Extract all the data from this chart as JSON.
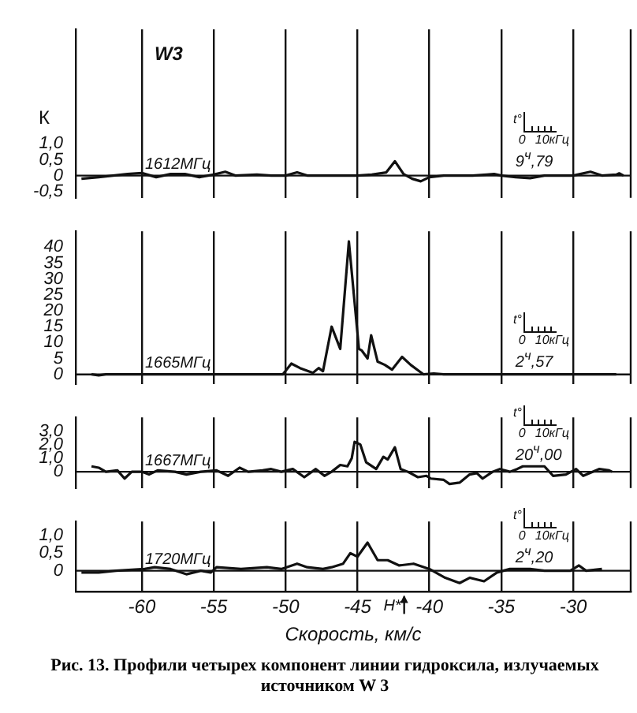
{
  "chart_data": [
    {
      "type": "line",
      "title": "W3",
      "ylabel": "К",
      "xlim": [
        -64.6,
        -26
      ],
      "xticks": [
        -60,
        -55,
        -50,
        -45,
        -40,
        -35,
        -30
      ],
      "ylim": [
        -0.7,
        4.6
      ],
      "yticks": [
        {
          "value": -0.5,
          "label": "-0,5"
        },
        0,
        {
          "value": 0.5,
          "label": "0,5"
        },
        {
          "value": 1,
          "label": "1,0"
        }
      ],
      "grid": "x",
      "tick_labels": "y",
      "marker": "none",
      "ref_lines": [
        {
          "axis": "y",
          "value": 0
        }
      ],
      "annotations": [
        "1612МГц",
        "t°",
        "0",
        "10кГц",
        "9$^{ч}$,79"
      ],
      "series": [
        {
          "color": "#111111",
          "x": [
            -64.2,
            -63,
            -62,
            -61,
            -60,
            -59,
            -58,
            -57,
            -56,
            -55,
            -54.2,
            -53.5,
            -52,
            -51,
            -50,
            -49.2,
            -48.5,
            -47,
            -46,
            -45,
            -44,
            -43,
            -42.4,
            -41.8,
            -41.2,
            -40.6,
            -40,
            -39,
            -37,
            -36,
            -35.5,
            -35,
            -34,
            -33,
            -32,
            -31,
            -30,
            -29.5,
            -28.8,
            -28,
            -27,
            -26.8,
            -26.5
          ],
          "values": [
            -0.1,
            -0.05,
            0,
            0.05,
            0.08,
            -0.05,
            0.05,
            0.05,
            -0.05,
            0.03,
            0.12,
            0,
            0.03,
            0,
            0,
            0.1,
            0,
            0,
            0,
            0,
            0.03,
            0.1,
            0.45,
            0.05,
            -0.1,
            -0.18,
            -0.05,
            0,
            0,
            0.03,
            0.05,
            0,
            -0.05,
            -0.08,
            0,
            0,
            0,
            0.05,
            0.12,
            0,
            0.03,
            0.07,
            0
          ]
        }
      ]
    },
    {
      "type": "line",
      "xlim": [
        -64.6,
        -26
      ],
      "xticks": [
        -60,
        -55,
        -50,
        -45,
        -40,
        -35,
        -30
      ],
      "ylim": [
        -3,
        45
      ],
      "yticks": [
        0,
        5,
        10,
        15,
        20,
        25,
        30,
        35,
        40
      ],
      "grid": "x",
      "tick_labels": "y",
      "marker": "none",
      "ref_lines": [
        {
          "axis": "y",
          "value": 0
        }
      ],
      "annotations": [
        "1665МГц",
        "t°",
        "0",
        "10кГц",
        "2$^{ч}$,57"
      ],
      "series": [
        {
          "color": "#111111",
          "x": [
            -63.5,
            -63,
            -62.5,
            -60,
            -55,
            -50.2,
            -49.6,
            -49,
            -48.1,
            -47.7,
            -47.4,
            -46.8,
            -46.2,
            -45.6,
            -44.9,
            -44.7,
            -44.3,
            -44.05,
            -43.6,
            -43.1,
            -42.6,
            -41.9,
            -41.3,
            -40.7,
            -40.4,
            -39.7,
            -39,
            -35,
            -30,
            -27
          ],
          "values": [
            0,
            -0.3,
            0,
            0,
            0,
            0,
            3.4,
            2,
            0.5,
            2,
            1,
            15,
            8,
            41.8,
            8,
            7.5,
            5,
            12.3,
            4,
            3,
            1.5,
            5.5,
            3,
            1,
            0,
            0.3,
            0,
            0,
            0,
            0
          ]
        }
      ]
    },
    {
      "type": "line",
      "xlim": [
        -64.6,
        -26
      ],
      "xticks": [
        -60,
        -55,
        -50,
        -45,
        -40,
        -35,
        -30
      ],
      "ylim": [
        -1.2,
        4
      ],
      "yticks": [
        0,
        {
          "value": 1,
          "label": "1,0"
        },
        {
          "value": 2,
          "label": "2,0"
        },
        {
          "value": 3,
          "label": "3,0"
        }
      ],
      "grid": "x",
      "tick_labels": "y",
      "marker": "none",
      "ref_lines": [
        {
          "axis": "y",
          "value": 0
        }
      ],
      "annotations": [
        "1667МГц",
        "t°",
        "0",
        "10кГц",
        "20$^{ч}$,00"
      ],
      "series": [
        {
          "color": "#111111",
          "x": [
            -63.5,
            -63,
            -62.5,
            -61.7,
            -61.2,
            -60.7,
            -60,
            -59.5,
            -58.9,
            -57.7,
            -56.9,
            -55.9,
            -54.8,
            -54,
            -53.2,
            -52.6,
            -51.6,
            -51,
            -50.3,
            -49.5,
            -48.7,
            -47.9,
            -47.3,
            -46.8,
            -46.2,
            -45.7,
            -45.4,
            -45.2,
            -44.8,
            -44.4,
            -43.7,
            -43.2,
            -42.9,
            -42.4,
            -42,
            -41.5,
            -40.8,
            -40.2,
            -39.9,
            -39,
            -38.6,
            -37.9,
            -37.2,
            -36.7,
            -36.3,
            -35.6,
            -35.1,
            -34.4,
            -33.9,
            -33.5,
            -32,
            -31.4,
            -30.5,
            -29.8,
            -29.3,
            -28.2,
            -27.5,
            -27.3
          ],
          "values": [
            0.4,
            0.3,
            0,
            0.1,
            -0.5,
            0,
            0,
            -0.2,
            0.1,
            0,
            -0.2,
            0,
            0.1,
            -0.3,
            0.3,
            0,
            0.1,
            0.2,
            0,
            0.2,
            -0.4,
            0.2,
            -0.3,
            0,
            0.5,
            0.4,
            1,
            2.2,
            2,
            0.7,
            0.2,
            1.1,
            0.9,
            1.8,
            0.2,
            0,
            -0.4,
            -0.3,
            -0.5,
            -0.6,
            -0.9,
            -0.8,
            -0.2,
            -0.1,
            -0.5,
            0,
            0.2,
            0,
            0.2,
            0.4,
            0.4,
            -0.3,
            -0.2,
            0.2,
            -0.3,
            0.2,
            0.1,
            0
          ]
        }
      ]
    },
    {
      "type": "line",
      "xlabel": "Скорость, км/с",
      "xlim": [
        -64.6,
        -26
      ],
      "xticks": [
        -60,
        -55,
        -50,
        -45,
        -40,
        -35,
        -30
      ],
      "ylim": [
        -0.6,
        1.4
      ],
      "yticks": [
        0,
        {
          "value": 0.5,
          "label": "0,5"
        },
        {
          "value": 1,
          "label": "1,0"
        }
      ],
      "grid": "x",
      "marker": "none",
      "ref_lines": [
        {
          "axis": "y",
          "value": 0
        }
      ],
      "annotations": [
        "1720МГц",
        "t°",
        "0",
        "10кГц",
        "2$^{ч}$,20",
        "Рис. 13. Профили четырех компонент линии гидроксила, излучаемых источником W 3",
        "H*"
      ],
      "series": [
        {
          "color": "#111111",
          "x": [
            -64.2,
            -63,
            -61.8,
            -59.8,
            -59.1,
            -58,
            -56.9,
            -55.9,
            -55.2,
            -54.8,
            -53.1,
            -51.3,
            -50.3,
            -49.2,
            -48.5,
            -47.4,
            -46.8,
            -46,
            -45.5,
            -45,
            -44.3,
            -43.6,
            -42.9,
            -42.1,
            -41.1,
            -40,
            -38.9,
            -37.9,
            -37.2,
            -36.2,
            -35.3,
            -34.4,
            -33,
            -32,
            -30.2,
            -29.6,
            -29.1,
            -28
          ],
          "values": [
            -0.05,
            -0.05,
            0,
            0.05,
            0.1,
            0.05,
            -0.1,
            0,
            -0.05,
            0.1,
            0.05,
            0.1,
            0.05,
            0.2,
            0.1,
            0.05,
            0.1,
            0.2,
            0.5,
            0.4,
            0.8,
            0.3,
            0.3,
            0.15,
            0.2,
            0.05,
            -0.2,
            -0.35,
            -0.2,
            -0.3,
            -0.05,
            0.05,
            0.05,
            0,
            0,
            0.15,
            0,
            0.05
          ]
        }
      ]
    }
  ]
}
